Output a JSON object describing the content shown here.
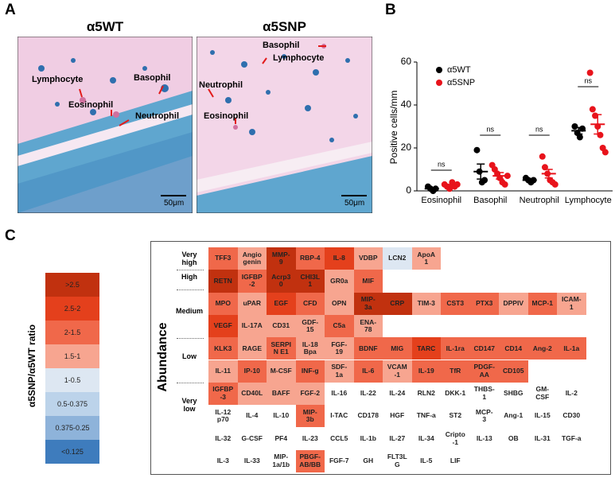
{
  "panel_a": {
    "label": "A",
    "images": [
      {
        "title": "α5WT",
        "annotations": [
          "Lymphocyte",
          "Eosinophil",
          "Basophil",
          "Neutrophil"
        ],
        "scale_bar": "50μm"
      },
      {
        "title": "α5SNP",
        "annotations": [
          "Basophil",
          "Lymphocyte",
          "Neutrophil",
          "Eosinophil"
        ],
        "scale_bar": "50μm"
      }
    ]
  },
  "panel_b_label": "B",
  "chart_data": {
    "type": "scatter",
    "ylabel": "Positive cells/mm",
    "categories": [
      "Eosinophil",
      "Basophil",
      "Neutrophil",
      "Lymphocyte"
    ],
    "ylim": [
      0,
      60
    ],
    "yticks": [
      0,
      20,
      40,
      60
    ],
    "annotations": [
      "ns",
      "ns",
      "ns",
      "ns"
    ],
    "series": [
      {
        "name": "α5WT",
        "color": "#000000",
        "values": [
          [
            2,
            1,
            0,
            1
          ],
          [
            19,
            9,
            4,
            5
          ],
          [
            6,
            5,
            4,
            5
          ],
          [
            30,
            27,
            25,
            29
          ]
        ],
        "mean": [
          1,
          9,
          5,
          28
        ],
        "error": [
          0.5,
          3.5,
          0.5,
          1.5
        ]
      },
      {
        "name": "α5SNP",
        "color": "#e8131b",
        "values": [
          [
            3,
            2,
            1,
            4,
            2,
            3
          ],
          [
            12,
            10,
            8,
            6,
            4,
            3,
            7
          ],
          [
            16,
            11,
            8,
            5,
            4,
            3
          ],
          [
            55,
            38,
            35,
            30,
            26,
            20,
            18
          ]
        ],
        "mean": [
          2.5,
          7,
          8,
          31
        ],
        "error": [
          0.5,
          1.5,
          2,
          4.5
        ]
      }
    ]
  },
  "panel_c": {
    "label": "C",
    "legend_title": "α5SNP/α5WT ratio",
    "legend": [
      {
        "label": ">2.5",
        "color": "#c1310f"
      },
      {
        "label": "2.5-2",
        "color": "#e4401c"
      },
      {
        "label": "2-1.5",
        "color": "#f0684a"
      },
      {
        "label": "1.5-1",
        "color": "#f7a590"
      },
      {
        "label": "1-0.5",
        "color": "#dde7f2"
      },
      {
        "label": "0.5-0.375",
        "color": "#bcd3ea"
      },
      {
        "label": "0.375-0.25",
        "color": "#8eb3da"
      },
      {
        "label": "<0.125",
        "color": "#3e7cbd"
      }
    ],
    "axis_label": "Abundance",
    "row_labels": [
      "Very\nhigh",
      "High",
      "Medium",
      null,
      "Low",
      null,
      "Very\nlow",
      null,
      null,
      null
    ],
    "rows": [
      [
        {
          "label": "TFF3",
          "color": "#f0684a"
        },
        {
          "label": "Angio\ngenin",
          "color": "#f7a590"
        },
        {
          "label": "MMP-\n9",
          "color": "#c1310f"
        },
        {
          "label": "RBP-4",
          "color": "#f0684a"
        },
        {
          "label": "IL-8",
          "color": "#e4401c"
        },
        {
          "label": "VDBP",
          "color": "#f7a590"
        },
        {
          "label": "LCN2",
          "color": "#dde7f2"
        },
        {
          "label": "ApoA\n1",
          "color": "#f7a590"
        }
      ],
      [
        {
          "label": "RETN",
          "color": "#c1310f"
        },
        {
          "label": "IGFBP\n-2",
          "color": "#f0684a"
        },
        {
          "label": "Acrp3\n0",
          "color": "#c1310f"
        },
        {
          "label": "CHI3L\n1",
          "color": "#c1310f"
        },
        {
          "label": "GR0a",
          "color": "#f7a590"
        },
        {
          "label": "MIF",
          "color": "#f0684a"
        }
      ],
      [
        {
          "label": "MPO",
          "color": "#f0684a"
        },
        {
          "label": "uPAR",
          "color": "#f7a590"
        },
        {
          "label": "EGF",
          "color": "#e4401c"
        },
        {
          "label": "CFD",
          "color": "#f0684a"
        },
        {
          "label": "OPN",
          "color": "#f7a590"
        },
        {
          "label": "MIP-\n3a",
          "color": "#c1310f"
        },
        {
          "label": "CRP",
          "color": "#c1310f"
        },
        {
          "label": "TIM-3",
          "color": "#f7a590"
        },
        {
          "label": "CST3",
          "color": "#f0684a"
        },
        {
          "label": "PTX3",
          "color": "#f0684a"
        },
        {
          "label": "DPPIV",
          "color": "#f7a590"
        },
        {
          "label": "MCP-1",
          "color": "#f0684a"
        },
        {
          "label": "ICAM-\n1",
          "color": "#f7a590"
        }
      ],
      [
        {
          "label": "VEGF",
          "color": "#e4401c"
        },
        {
          "label": "IL-17A",
          "color": "#f7a590"
        },
        {
          "label": "CD31",
          "color": "#f7a590"
        },
        {
          "label": "GDF-\n15",
          "color": "#f7a590"
        },
        {
          "label": "C5a",
          "color": "#f0684a"
        },
        {
          "label": "ENA-\n78",
          "color": "#f7a590"
        }
      ],
      [
        {
          "label": "KLK3",
          "color": "#f0684a"
        },
        {
          "label": "RAGE",
          "color": "#f7a590"
        },
        {
          "label": "SERPI\nN E1",
          "color": "#f0684a"
        },
        {
          "label": "IL-18\nBpa",
          "color": "#f7a590"
        },
        {
          "label": "FGF-\n19",
          "color": "#f7a590"
        },
        {
          "label": "BDNF",
          "color": "#f0684a"
        },
        {
          "label": "MIG",
          "color": "#f0684a"
        },
        {
          "label": "TARC",
          "color": "#e4401c"
        },
        {
          "label": "IL-1ra",
          "color": "#f0684a"
        },
        {
          "label": "CD147",
          "color": "#f0684a"
        },
        {
          "label": "CD14",
          "color": "#f0684a"
        },
        {
          "label": "Ang-2",
          "color": "#f0684a"
        },
        {
          "label": "IL-1a",
          "color": "#f0684a"
        }
      ],
      [
        {
          "label": "IL-11",
          "color": "#f7a590"
        },
        {
          "label": "IP-10",
          "color": "#f0684a"
        },
        {
          "label": "M-CSF",
          "color": "#f7a590"
        },
        {
          "label": "INF-g",
          "color": "#f0684a"
        },
        {
          "label": "SDF-\n1a",
          "color": "#f7a590"
        },
        {
          "label": "IL-6",
          "color": "#f0684a"
        },
        {
          "label": "VCAM\n-1",
          "color": "#f7a590"
        },
        {
          "label": "IL-19",
          "color": "#f0684a"
        },
        {
          "label": "TfR",
          "color": "#f0684a"
        },
        {
          "label": "PDGF-\nAA",
          "color": "#f0684a"
        },
        {
          "label": "CD105",
          "color": "#f0684a"
        }
      ],
      [
        {
          "label": "IGFBP\n-3",
          "color": "#f0684a"
        },
        {
          "label": "CD40L",
          "color": "#f7a590"
        },
        {
          "label": "BAFF",
          "color": "#f7a590"
        },
        {
          "label": "FGF-2",
          "color": "#f7a590"
        },
        {
          "label": "IL-16",
          "color": null
        },
        {
          "label": "IL-22",
          "color": null
        },
        {
          "label": "IL-24",
          "color": null
        },
        {
          "label": "RLN2",
          "color": null
        },
        {
          "label": "DKK-1",
          "color": null
        },
        {
          "label": "THBS-\n1",
          "color": null
        },
        {
          "label": "SHBG",
          "color": null
        },
        {
          "label": "GM-\nCSF",
          "color": null
        },
        {
          "label": "IL-2",
          "color": null
        }
      ],
      [
        {
          "label": "IL-12\np70",
          "color": null
        },
        {
          "label": "IL-4",
          "color": null
        },
        {
          "label": "IL-10",
          "color": null
        },
        {
          "label": "MIP-\n3b",
          "color": "#f0684a"
        },
        {
          "label": "I-TAC",
          "color": null
        },
        {
          "label": "CD178",
          "color": null
        },
        {
          "label": "HGF",
          "color": null
        },
        {
          "label": "TNF-a",
          "color": null
        },
        {
          "label": "ST2",
          "color": null
        },
        {
          "label": "MCP-\n3",
          "color": null
        },
        {
          "label": "Ang-1",
          "color": null
        },
        {
          "label": "IL-15",
          "color": null
        },
        {
          "label": "CD30",
          "color": null
        }
      ],
      [
        {
          "label": "IL-32",
          "color": null
        },
        {
          "label": "G-CSF",
          "color": null
        },
        {
          "label": "PF4",
          "color": null
        },
        {
          "label": "IL-23",
          "color": null
        },
        {
          "label": "CCL5",
          "color": null
        },
        {
          "label": "IL-1b",
          "color": null
        },
        {
          "label": "IL-27",
          "color": null
        },
        {
          "label": "IL-34",
          "color": null
        },
        {
          "label": "Cripto\n-1",
          "color": null
        },
        {
          "label": "IL-13",
          "color": null
        },
        {
          "label": "OB",
          "color": null
        },
        {
          "label": "IL-31",
          "color": null
        },
        {
          "label": "TGF-a",
          "color": null
        }
      ],
      [
        {
          "label": "IL-3",
          "color": null
        },
        {
          "label": "IL-33",
          "color": null
        },
        {
          "label": "MIP-\n1a/1b",
          "color": null
        },
        {
          "label": "PBGF-\nAB/BB",
          "color": "#f0684a"
        },
        {
          "label": "FGF-7",
          "color": null
        },
        {
          "label": "GH",
          "color": null
        },
        {
          "label": "FLT3L\nG",
          "color": null
        },
        {
          "label": "IL-5",
          "color": null
        },
        {
          "label": "LIF",
          "color": null
        }
      ]
    ]
  }
}
